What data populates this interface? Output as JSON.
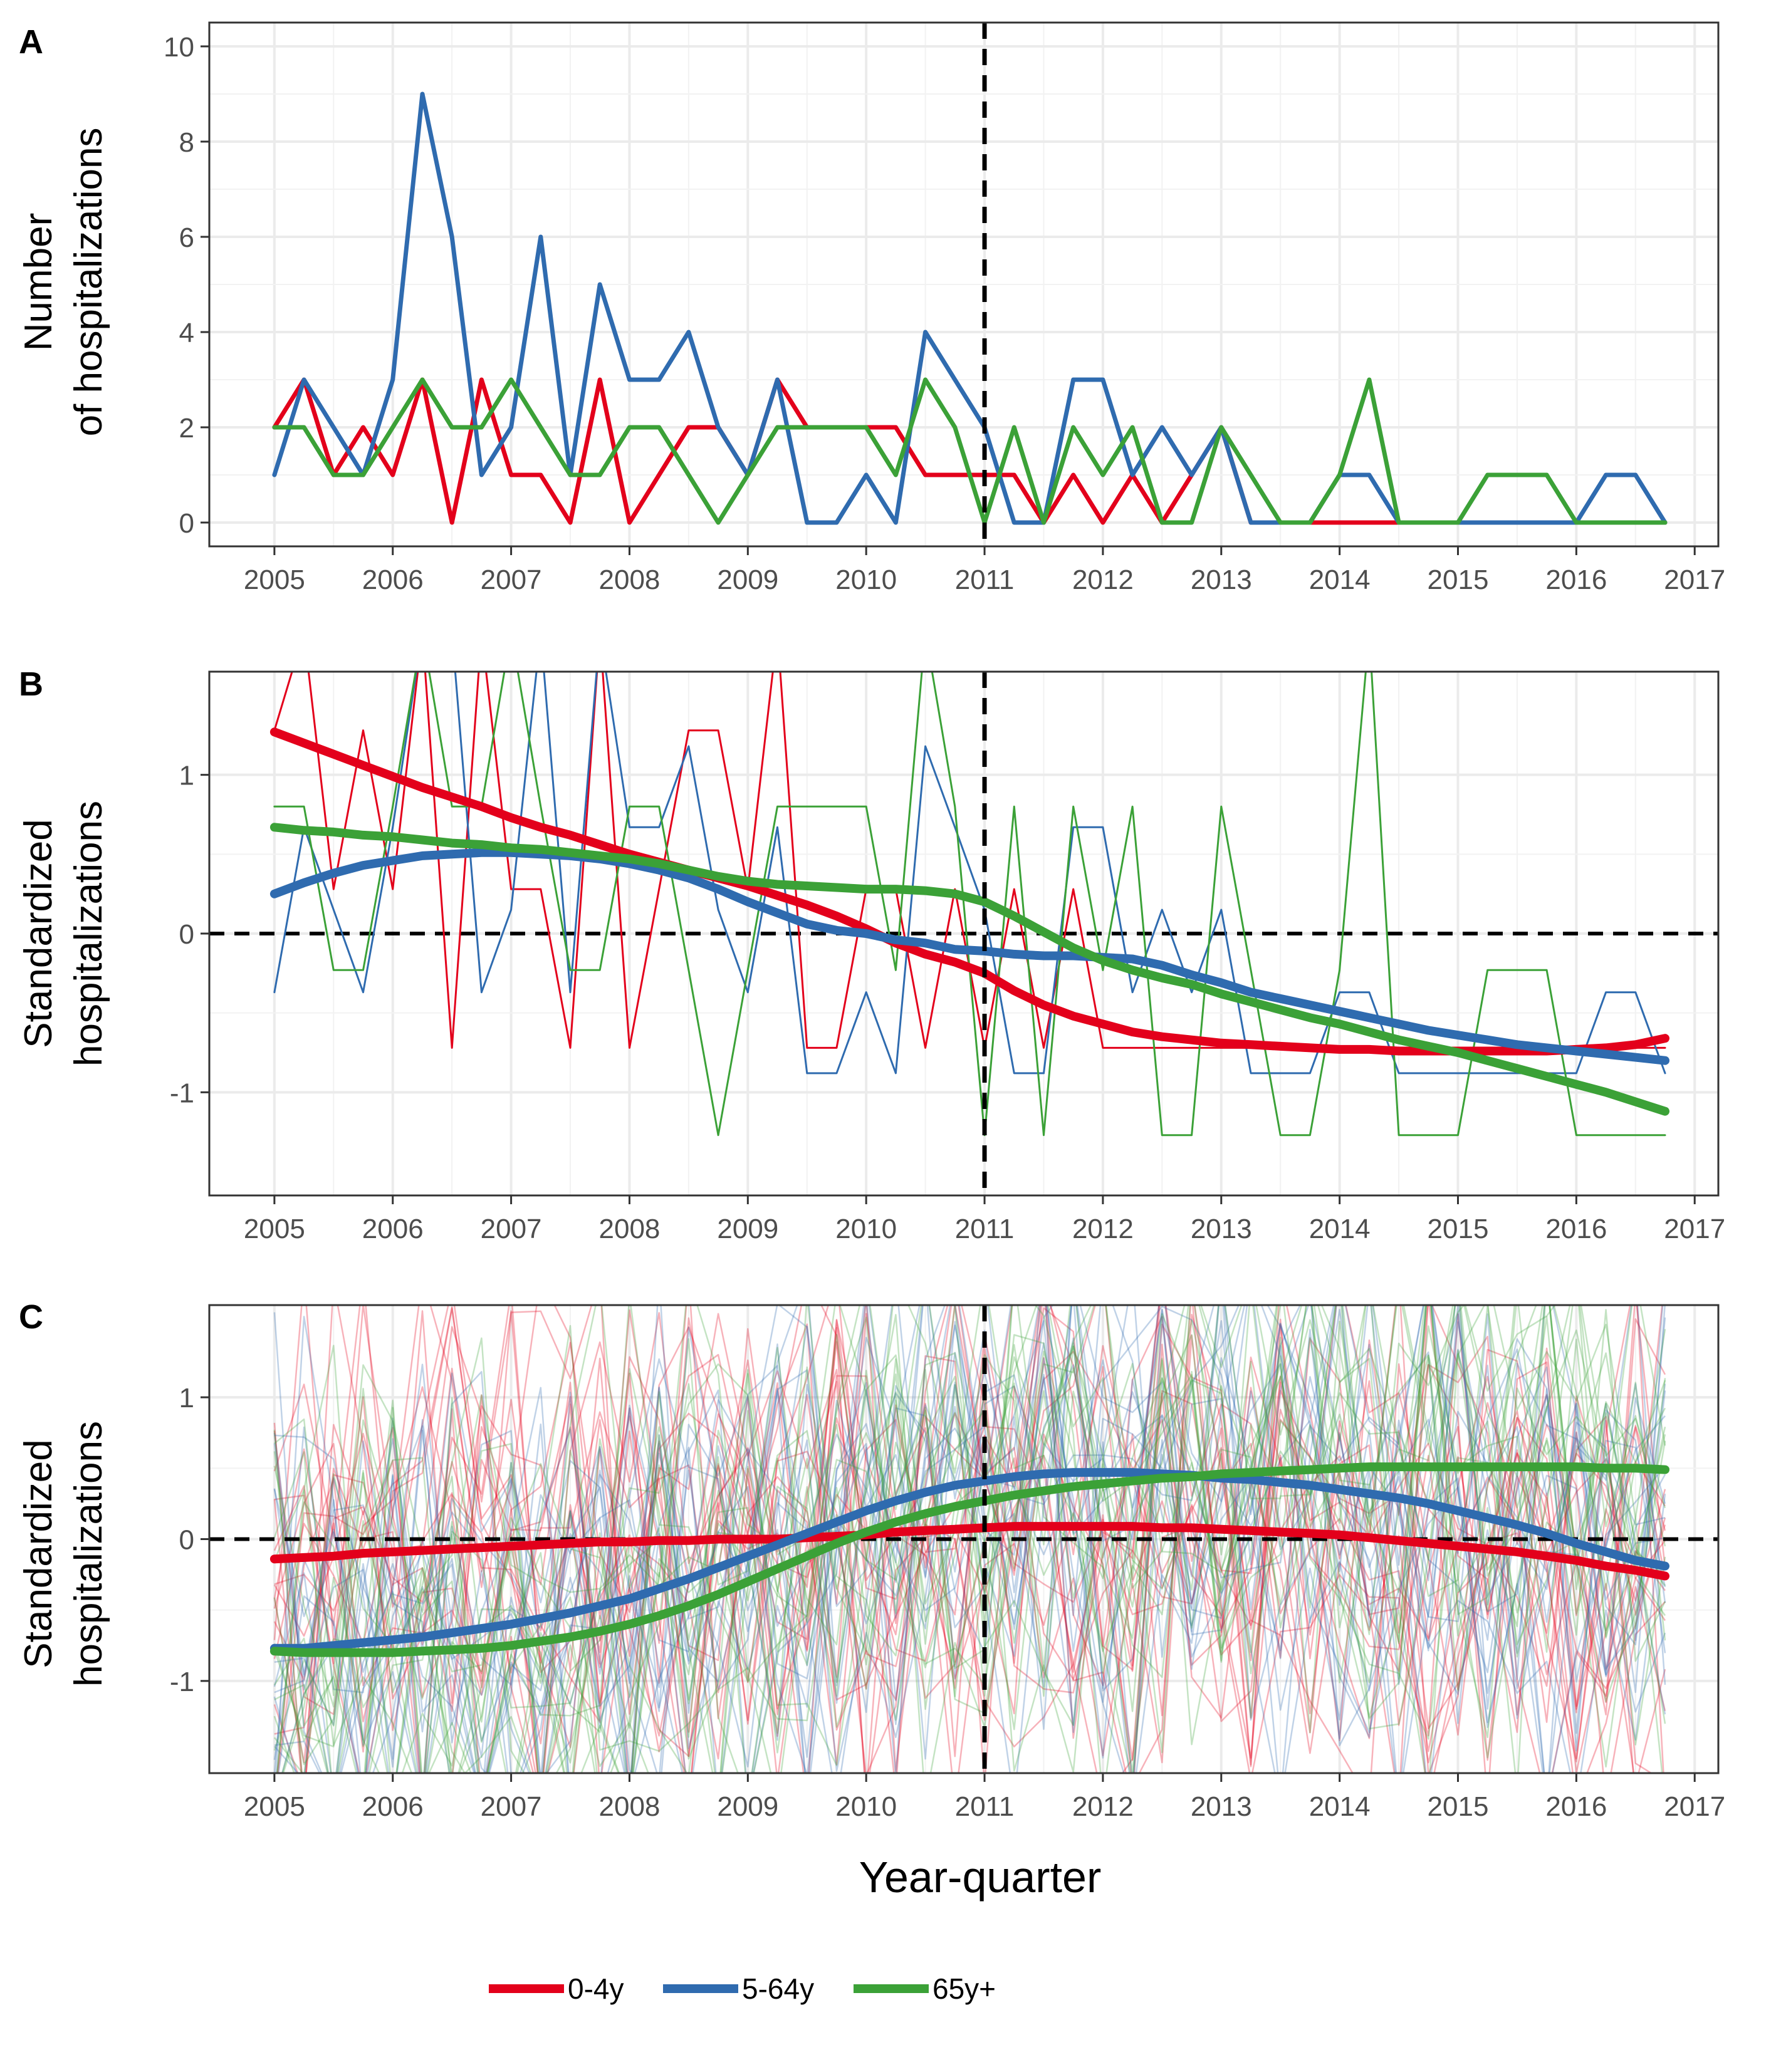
{
  "figure": {
    "xlabel": "Year-quarter",
    "legend": [
      {
        "label": "0-4y",
        "color": "#E3001B"
      },
      {
        "label": "5-64y",
        "color": "#2F6BAF"
      },
      {
        "label": "65y+",
        "color": "#3BA137"
      }
    ],
    "colors": {
      "0-4y": "#E3001B",
      "5-64y": "#2F6BAF",
      "65y+": "#3BA137",
      "panel_border": "#333333",
      "gridline": "#ebebeb"
    }
  },
  "chart_data": [
    {
      "panel": "A",
      "type": "line",
      "ylabel_lines": [
        "Number",
        "of hospitalizations"
      ],
      "xlim": [
        2004.45,
        2017.2
      ],
      "ylim": [
        -0.5,
        10.5
      ],
      "x_ticks": [
        "2005",
        "2006",
        "2007",
        "2008",
        "2009",
        "2010",
        "2011",
        "2012",
        "2013",
        "2014",
        "2015",
        "2016",
        "2017"
      ],
      "y_ticks": [
        "0",
        "2",
        "4",
        "6",
        "8",
        "10"
      ],
      "y_tick_values": [
        0,
        2,
        4,
        6,
        8,
        10
      ],
      "intervention_year": 2011,
      "zero_line": false,
      "x_start": 2005,
      "x_step": 0.25,
      "series": [
        {
          "name": "0-4y",
          "width": 7,
          "values": [
            2,
            3,
            1,
            2,
            1,
            3,
            0,
            3,
            1,
            1,
            0,
            3,
            0,
            1,
            2,
            2,
            1,
            3,
            2,
            2,
            2,
            2,
            1,
            1,
            1,
            1,
            0,
            1,
            0,
            1,
            0,
            1,
            2,
            0,
            0,
            0,
            0,
            0,
            0,
            0,
            0,
            0,
            0,
            0,
            0,
            0,
            0,
            0
          ]
        },
        {
          "name": "5-64y",
          "width": 7,
          "values": [
            1,
            3,
            2,
            1,
            3,
            9,
            6,
            1,
            2,
            6,
            1,
            5,
            3,
            3,
            4,
            2,
            1,
            3,
            0,
            0,
            1,
            0,
            4,
            3,
            2,
            0,
            0,
            3,
            3,
            1,
            2,
            1,
            2,
            0,
            0,
            0,
            1,
            1,
            0,
            0,
            0,
            0,
            0,
            0,
            0,
            1,
            1,
            0
          ]
        },
        {
          "name": "65y+",
          "width": 7,
          "values": [
            2,
            2,
            1,
            1,
            2,
            3,
            2,
            2,
            3,
            2,
            1,
            1,
            2,
            2,
            1,
            0,
            1,
            2,
            2,
            2,
            2,
            1,
            3,
            2,
            0,
            2,
            0,
            2,
            1,
            2,
            0,
            0,
            2,
            1,
            0,
            0,
            1,
            3,
            0,
            0,
            0,
            1,
            1,
            1,
            0,
            0,
            0,
            0
          ]
        }
      ]
    },
    {
      "panel": "B",
      "type": "line",
      "ylabel_lines": [
        "Standardized",
        "hospitalizations"
      ],
      "xlim": [
        2004.45,
        2017.2
      ],
      "ylim": [
        -1.65,
        1.65
      ],
      "x_ticks": [
        "2005",
        "2006",
        "2007",
        "2008",
        "2009",
        "2010",
        "2011",
        "2012",
        "2013",
        "2014",
        "2015",
        "2016",
        "2017"
      ],
      "y_ticks": [
        "-1",
        "0",
        "1"
      ],
      "y_tick_values": [
        -1,
        0,
        1
      ],
      "intervention_year": 2011,
      "zero_line": true,
      "x_start": 2005,
      "x_step": 0.25,
      "series": [
        {
          "name": "0-4y",
          "width": 3,
          "values": [
            1.28,
            1.9,
            0.28,
            1.28,
            0.28,
            1.9,
            -0.72,
            1.9,
            0.28,
            0.28,
            -0.72,
            1.9,
            -0.72,
            0.28,
            1.28,
            1.28,
            0.28,
            1.9,
            -0.72,
            -0.72,
            0.28,
            0.28,
            -0.72,
            0.28,
            -0.72,
            0.28,
            -0.72,
            0.28,
            -0.72,
            -0.72,
            -0.72,
            -0.72,
            -0.72,
            -0.72,
            -0.72,
            -0.72,
            -0.72,
            -0.72,
            -0.72,
            -0.72,
            -0.72,
            -0.72,
            -0.72,
            -0.72,
            -0.72,
            -0.72,
            -0.72,
            -0.72
          ]
        },
        {
          "name": "5-64y",
          "width": 3,
          "values": [
            -0.37,
            0.67,
            0.15,
            -0.37,
            0.67,
            1.9,
            1.9,
            -0.37,
            0.15,
            1.9,
            -0.37,
            1.9,
            0.67,
            0.67,
            1.18,
            0.15,
            -0.37,
            0.67,
            -0.88,
            -0.88,
            -0.37,
            -0.88,
            1.18,
            0.67,
            0.15,
            -0.88,
            -0.88,
            0.67,
            0.67,
            -0.37,
            0.15,
            -0.37,
            0.15,
            -0.88,
            -0.88,
            -0.88,
            -0.37,
            -0.37,
            -0.88,
            -0.88,
            -0.88,
            -0.88,
            -0.88,
            -0.88,
            -0.88,
            -0.37,
            -0.37,
            -0.88
          ]
        },
        {
          "name": "65y+",
          "width": 3,
          "values": [
            0.8,
            0.8,
            -0.23,
            -0.23,
            0.8,
            1.9,
            0.8,
            0.8,
            1.9,
            0.8,
            -0.23,
            -0.23,
            0.8,
            0.8,
            -0.23,
            -1.27,
            -0.23,
            0.8,
            0.8,
            0.8,
            0.8,
            -0.23,
            1.9,
            0.8,
            -1.27,
            0.8,
            -1.27,
            0.8,
            -0.23,
            0.8,
            -1.27,
            -1.27,
            0.8,
            -0.23,
            -1.27,
            -1.27,
            -0.23,
            1.9,
            -1.27,
            -1.27,
            -1.27,
            -0.23,
            -0.23,
            -0.23,
            -1.27,
            -1.27,
            -1.27,
            -1.27
          ]
        },
        {
          "name": "0-4y smooth",
          "width": 14,
          "values": [
            1.27,
            1.2,
            1.13,
            1.06,
            0.99,
            0.92,
            0.86,
            0.8,
            0.73,
            0.67,
            0.62,
            0.56,
            0.5,
            0.45,
            0.4,
            0.35,
            0.3,
            0.24,
            0.18,
            0.11,
            0.03,
            -0.06,
            -0.13,
            -0.18,
            -0.25,
            -0.36,
            -0.45,
            -0.52,
            -0.57,
            -0.62,
            -0.65,
            -0.67,
            -0.69,
            -0.7,
            -0.71,
            -0.72,
            -0.73,
            -0.73,
            -0.74,
            -0.74,
            -0.74,
            -0.74,
            -0.74,
            -0.74,
            -0.73,
            -0.72,
            -0.7,
            -0.66
          ]
        },
        {
          "name": "5-64y smooth",
          "width": 14,
          "values": [
            0.25,
            0.32,
            0.38,
            0.43,
            0.46,
            0.49,
            0.5,
            0.51,
            0.51,
            0.5,
            0.49,
            0.47,
            0.44,
            0.4,
            0.35,
            0.28,
            0.2,
            0.13,
            0.06,
            0.02,
            0.0,
            -0.04,
            -0.06,
            -0.1,
            -0.11,
            -0.13,
            -0.14,
            -0.14,
            -0.15,
            -0.16,
            -0.2,
            -0.26,
            -0.31,
            -0.37,
            -0.41,
            -0.45,
            -0.49,
            -0.53,
            -0.57,
            -0.61,
            -0.64,
            -0.67,
            -0.7,
            -0.72,
            -0.74,
            -0.76,
            -0.78,
            -0.8
          ]
        },
        {
          "name": "65y+ smooth",
          "width": 14,
          "values": [
            0.67,
            0.65,
            0.64,
            0.62,
            0.61,
            0.59,
            0.57,
            0.56,
            0.54,
            0.53,
            0.51,
            0.49,
            0.47,
            0.44,
            0.4,
            0.36,
            0.33,
            0.31,
            0.3,
            0.29,
            0.28,
            0.28,
            0.27,
            0.25,
            0.2,
            0.11,
            0.01,
            -0.09,
            -0.17,
            -0.23,
            -0.28,
            -0.32,
            -0.38,
            -0.43,
            -0.48,
            -0.53,
            -0.57,
            -0.62,
            -0.67,
            -0.71,
            -0.75,
            -0.8,
            -0.85,
            -0.9,
            -0.95,
            -1.0,
            -1.06,
            -1.12
          ]
        }
      ]
    },
    {
      "panel": "C",
      "type": "line",
      "ylabel_lines": [
        "Standardized",
        "hospitalizations"
      ],
      "xlim": [
        2004.45,
        2017.2
      ],
      "ylim": [
        -1.65,
        1.65
      ],
      "x_ticks": [
        "2005",
        "2006",
        "2007",
        "2008",
        "2009",
        "2010",
        "2011",
        "2012",
        "2013",
        "2014",
        "2015",
        "2016",
        "2017"
      ],
      "y_ticks": [
        "-1",
        "0",
        "1"
      ],
      "y_tick_values": [
        -1,
        0,
        1
      ],
      "intervention_year": 2011,
      "zero_line": true,
      "x_start": 2005,
      "x_step": 0.25,
      "background_traces": {
        "per_group": 18,
        "opacity": 0.3,
        "width": 2.5,
        "amplitude": 1.0,
        "note": "many faint per-unit standardized series drawn around each group's smooth"
      },
      "series": [
        {
          "name": "0-4y smooth",
          "width": 14,
          "values": [
            -0.14,
            -0.13,
            -0.12,
            -0.1,
            -0.09,
            -0.08,
            -0.07,
            -0.06,
            -0.05,
            -0.04,
            -0.03,
            -0.02,
            -0.02,
            -0.01,
            -0.01,
            0.0,
            0.0,
            0.0,
            0.01,
            0.02,
            0.03,
            0.05,
            0.06,
            0.07,
            0.08,
            0.09,
            0.09,
            0.09,
            0.09,
            0.09,
            0.08,
            0.08,
            0.07,
            0.06,
            0.05,
            0.04,
            0.03,
            0.01,
            -0.01,
            -0.03,
            -0.05,
            -0.07,
            -0.09,
            -0.12,
            -0.15,
            -0.19,
            -0.22,
            -0.26
          ]
        },
        {
          "name": "5-64y smooth",
          "width": 14,
          "values": [
            -0.77,
            -0.77,
            -0.75,
            -0.73,
            -0.71,
            -0.69,
            -0.66,
            -0.63,
            -0.6,
            -0.56,
            -0.52,
            -0.47,
            -0.42,
            -0.35,
            -0.28,
            -0.2,
            -0.12,
            -0.04,
            0.04,
            0.12,
            0.2,
            0.27,
            0.33,
            0.38,
            0.41,
            0.44,
            0.46,
            0.47,
            0.47,
            0.47,
            0.46,
            0.45,
            0.43,
            0.42,
            0.4,
            0.38,
            0.35,
            0.32,
            0.29,
            0.25,
            0.2,
            0.15,
            0.1,
            0.04,
            -0.03,
            -0.09,
            -0.15,
            -0.19
          ]
        },
        {
          "name": "65y+ smooth",
          "width": 14,
          "values": [
            -0.79,
            -0.8,
            -0.8,
            -0.8,
            -0.8,
            -0.79,
            -0.78,
            -0.77,
            -0.75,
            -0.72,
            -0.69,
            -0.65,
            -0.6,
            -0.54,
            -0.47,
            -0.39,
            -0.3,
            -0.21,
            -0.12,
            -0.03,
            0.05,
            0.12,
            0.18,
            0.23,
            0.27,
            0.31,
            0.34,
            0.37,
            0.39,
            0.41,
            0.43,
            0.44,
            0.46,
            0.47,
            0.48,
            0.49,
            0.5,
            0.51,
            0.51,
            0.51,
            0.51,
            0.51,
            0.51,
            0.51,
            0.51,
            0.5,
            0.5,
            0.49
          ]
        }
      ]
    }
  ]
}
